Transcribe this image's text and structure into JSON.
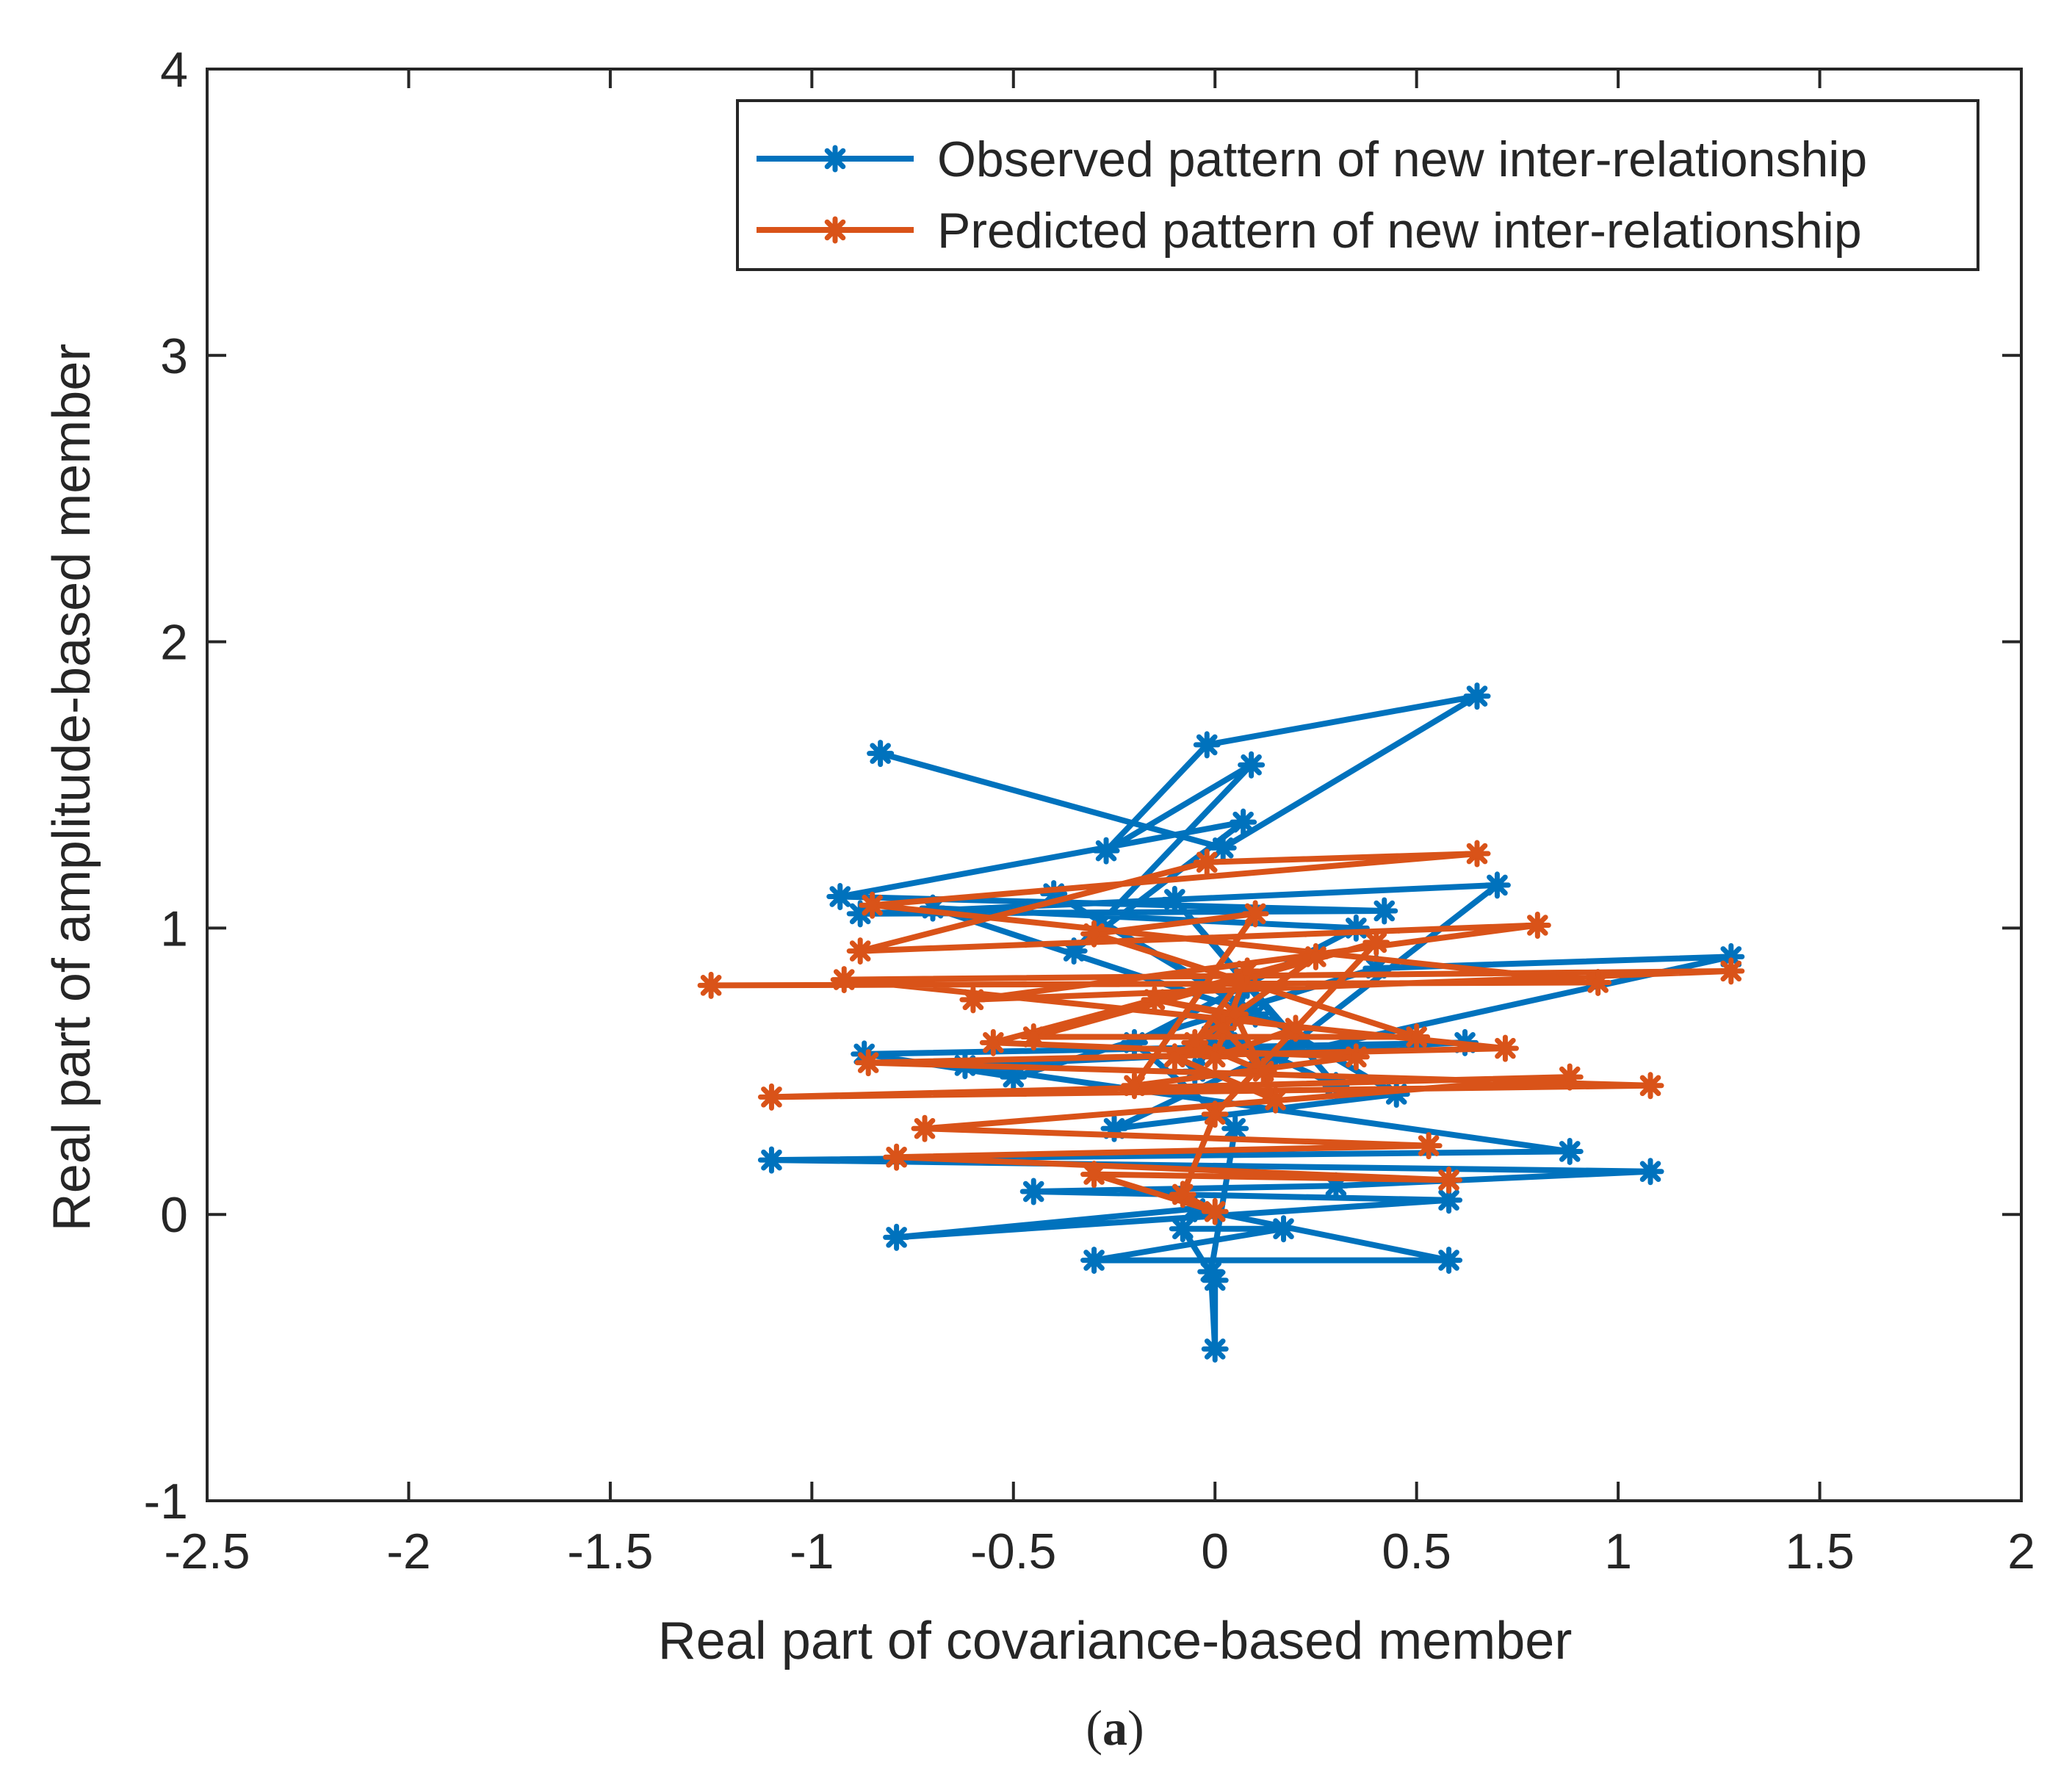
{
  "chart_data": {
    "type": "line",
    "title": "",
    "xlabel": "Real part of covariance-based member",
    "ylabel": "Real part of amplitude-based member",
    "caption_letter": "a",
    "xlim": [
      -2.5,
      2
    ],
    "ylim": [
      -1,
      4
    ],
    "xticks": [
      -2.5,
      -2,
      -1.5,
      -1,
      -0.5,
      0,
      0.5,
      1,
      1.5,
      2
    ],
    "yticks": [
      -1,
      0,
      1,
      2,
      3,
      4
    ],
    "xtick_labels": [
      "-2.5",
      "-2",
      "-1.5",
      "-1",
      "-0.5",
      "0",
      "0.5",
      "1",
      "1.5",
      "2"
    ],
    "ytick_labels": [
      "-1",
      "0",
      "1",
      "2",
      "3",
      "4"
    ],
    "grid": false,
    "legend_position": "top-right",
    "series": [
      {
        "name": "Observed pattern of new inter-relationship",
        "color": "#0072BD",
        "marker": "asterisk",
        "points": [
          [
            -0.83,
            1.61
          ],
          [
            0.02,
            1.28
          ],
          [
            0.65,
            1.81
          ],
          [
            -0.02,
            1.64
          ],
          [
            -0.27,
            1.27
          ],
          [
            0.09,
            1.57
          ],
          [
            -0.35,
            0.92
          ],
          [
            0.07,
            1.37
          ],
          [
            -0.93,
            1.11
          ],
          [
            0.42,
            1.06
          ],
          [
            -0.88,
            1.05
          ],
          [
            0.7,
            1.15
          ],
          [
            0.15,
            0.55
          ],
          [
            1.28,
            0.9
          ],
          [
            0.4,
            0.86
          ],
          [
            -0.5,
            0.48
          ],
          [
            -0.87,
            0.56
          ],
          [
            0.62,
            0.6
          ],
          [
            -0.62,
            0.52
          ],
          [
            0.88,
            0.22
          ],
          [
            -1.1,
            0.19
          ],
          [
            1.08,
            0.15
          ],
          [
            0.3,
            0.1
          ],
          [
            -0.45,
            0.08
          ],
          [
            0.58,
            0.05
          ],
          [
            -0.79,
            -0.08
          ],
          [
            -0.05,
            0.02
          ],
          [
            0.58,
            -0.16
          ],
          [
            -0.3,
            -0.16
          ],
          [
            0.17,
            -0.05
          ],
          [
            -0.08,
            -0.05
          ],
          [
            0.0,
            -0.23
          ],
          [
            0.0,
            -0.47
          ],
          [
            -0.01,
            -0.2
          ],
          [
            0.05,
            0.3
          ],
          [
            -0.2,
            0.6
          ],
          [
            0.35,
            1.0
          ],
          [
            -0.7,
            1.07
          ],
          [
            0.1,
            0.7
          ],
          [
            -0.4,
            1.12
          ],
          [
            0.45,
            0.42
          ],
          [
            -0.25,
            0.3
          ],
          [
            0.2,
            0.6
          ],
          [
            -0.1,
            1.1
          ],
          [
            0.3,
            0.45
          ],
          [
            0.0,
            0.65
          ],
          [
            -0.05,
            0.5
          ],
          [
            0.08,
            0.8
          ],
          [
            0.03,
            0.6
          ]
        ]
      },
      {
        "name": "Predicted pattern of new inter-relationship",
        "color": "#D95319",
        "marker": "asterisk",
        "points": [
          [
            -1.25,
            0.8
          ],
          [
            0.95,
            0.81
          ],
          [
            -0.85,
            1.08
          ],
          [
            0.65,
            1.26
          ],
          [
            -0.02,
            1.23
          ],
          [
            -0.88,
            0.92
          ],
          [
            0.8,
            1.01
          ],
          [
            -0.6,
            0.75
          ],
          [
            1.28,
            0.85
          ],
          [
            -0.92,
            0.82
          ],
          [
            0.72,
            0.58
          ],
          [
            -0.86,
            0.53
          ],
          [
            1.08,
            0.45
          ],
          [
            -1.1,
            0.41
          ],
          [
            0.88,
            0.48
          ],
          [
            -0.72,
            0.3
          ],
          [
            0.53,
            0.24
          ],
          [
            -0.79,
            0.2
          ],
          [
            0.58,
            0.12
          ],
          [
            -0.3,
            0.14
          ],
          [
            0.0,
            0.01
          ],
          [
            -0.08,
            0.07
          ],
          [
            0.0,
            0.35
          ],
          [
            0.4,
            0.95
          ],
          [
            -0.45,
            0.62
          ],
          [
            0.5,
            0.62
          ],
          [
            -0.3,
            0.98
          ],
          [
            0.1,
            1.05
          ],
          [
            -0.2,
            0.45
          ],
          [
            0.35,
            0.55
          ],
          [
            -0.55,
            0.6
          ],
          [
            0.25,
            0.9
          ],
          [
            -0.1,
            0.55
          ],
          [
            0.15,
            0.4
          ],
          [
            0.05,
            0.7
          ],
          [
            -0.15,
            0.75
          ],
          [
            0.2,
            0.65
          ],
          [
            0.0,
            0.55
          ],
          [
            0.08,
            0.85
          ],
          [
            -0.05,
            0.6
          ],
          [
            0.12,
            0.5
          ],
          [
            0.02,
            0.65
          ]
        ]
      }
    ]
  }
}
